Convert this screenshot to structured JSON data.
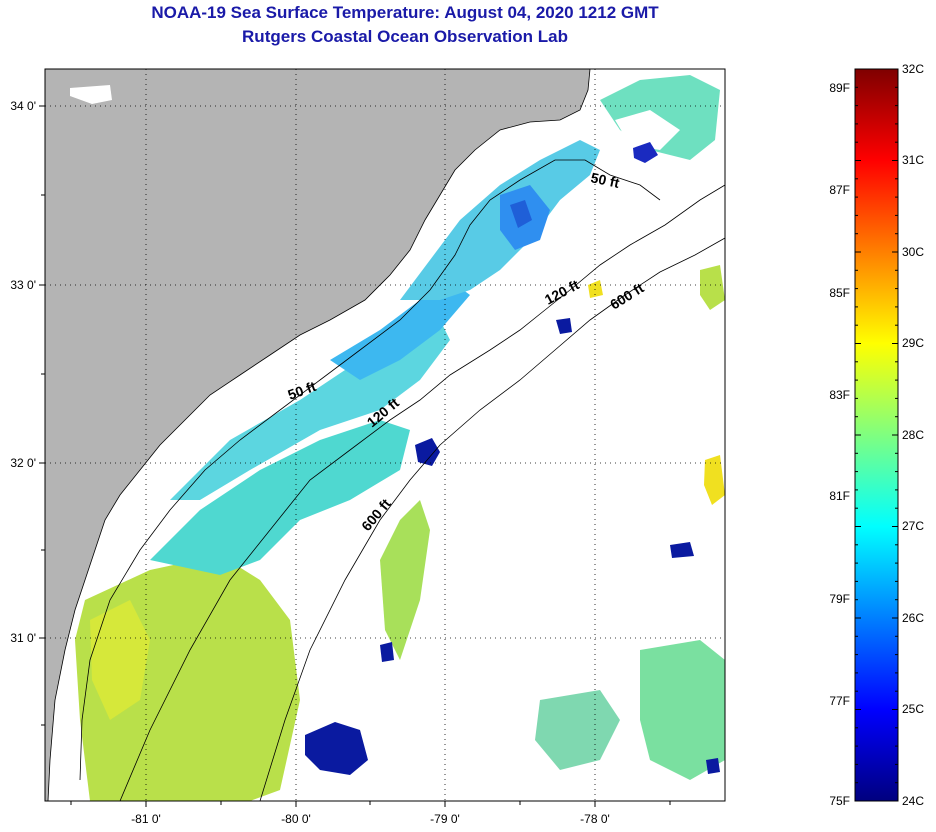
{
  "title_line1": "NOAA-19 Sea Surface Temperature:  August 04, 2020 1212 GMT",
  "title_line2": "Rutgers Coastal Ocean Observation Lab",
  "map": {
    "lat_ticks": [
      {
        "lat": 34,
        "label": "34 0'"
      },
      {
        "lat": 33,
        "label": "33 0'"
      },
      {
        "lat": 32,
        "label": "32 0'"
      },
      {
        "lat": 31,
        "label": "31 0'"
      }
    ],
    "lon_ticks": [
      {
        "lon": -81,
        "label": "-81 0'"
      },
      {
        "lon": -80,
        "label": "-80 0'"
      },
      {
        "lon": -79,
        "label": "-79 0'"
      },
      {
        "lon": -78,
        "label": "-78 0'"
      }
    ],
    "isobath_labels": [
      "50 ft",
      "50 ft",
      "120 ft",
      "120 ft",
      "600 ft",
      "600 ft"
    ]
  },
  "colorbar": {
    "celsius": [
      "32C",
      "31C",
      "30C",
      "29C",
      "28C",
      "27C",
      "26C",
      "25C",
      "24C"
    ],
    "fahrenheit": [
      "89F",
      "87F",
      "85F",
      "83F",
      "81F",
      "79F",
      "77F",
      "75F"
    ]
  },
  "colors": {
    "land": "#b4b4b4",
    "title": "#1a1aa8",
    "cold": "#00007f",
    "warm": "#7f0000"
  }
}
